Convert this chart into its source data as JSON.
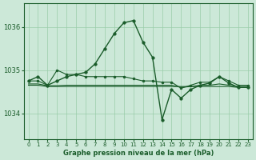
{
  "background_color": "#cce8d8",
  "plot_bg_color": "#cce8d8",
  "grid_color": "#99ccaa",
  "line_color": "#1a5c2a",
  "xlabel": "Graphe pression niveau de la mer (hPa)",
  "ylim": [
    1033.4,
    1036.55
  ],
  "xlim": [
    -0.5,
    23.5
  ],
  "yticks": [
    1034,
    1035,
    1036
  ],
  "xticks": [
    0,
    1,
    2,
    3,
    4,
    5,
    6,
    7,
    8,
    9,
    10,
    11,
    12,
    13,
    14,
    15,
    16,
    17,
    18,
    19,
    20,
    21,
    22,
    23
  ],
  "series": [
    {
      "x": [
        0,
        1,
        2,
        3,
        4,
        5,
        6,
        7,
        8,
        9,
        10,
        11,
        12,
        13,
        14,
        15,
        16,
        17,
        18,
        19,
        20,
        21,
        22,
        23
      ],
      "y": [
        1034.75,
        1034.85,
        1034.65,
        1034.75,
        1034.85,
        1034.9,
        1034.95,
        1035.15,
        1035.5,
        1035.85,
        1036.1,
        1036.15,
        1035.65,
        1035.3,
        1033.85,
        1034.55,
        1034.35,
        1034.55,
        1034.65,
        1034.7,
        1034.85,
        1034.7,
        1034.6,
        1034.6
      ],
      "marker": "o",
      "markersize": 2.5,
      "linewidth": 1.0
    },
    {
      "x": [
        0,
        1,
        2,
        3,
        4,
        5,
        6,
        7,
        8,
        9,
        10,
        11,
        12,
        13,
        14,
        15,
        16,
        17,
        18,
        19,
        20,
        21,
        22,
        23
      ],
      "y": [
        1034.75,
        1034.75,
        1034.65,
        1035.0,
        1034.9,
        1034.9,
        1034.85,
        1034.85,
        1034.85,
        1034.85,
        1034.85,
        1034.8,
        1034.75,
        1034.75,
        1034.72,
        1034.72,
        1034.58,
        1034.65,
        1034.72,
        1034.72,
        1034.85,
        1034.75,
        1034.65,
        1034.65
      ],
      "marker": "o",
      "markersize": 2.0,
      "linewidth": 0.8
    },
    {
      "x": [
        0,
        1,
        2,
        3,
        4,
        5,
        6,
        7,
        8,
        9,
        10,
        11,
        12,
        13,
        14,
        15,
        16,
        17,
        18,
        19,
        20,
        21,
        22,
        23
      ],
      "y": [
        1034.65,
        1034.65,
        1034.62,
        1034.62,
        1034.62,
        1034.62,
        1034.62,
        1034.62,
        1034.62,
        1034.62,
        1034.62,
        1034.62,
        1034.62,
        1034.62,
        1034.62,
        1034.62,
        1034.62,
        1034.62,
        1034.62,
        1034.62,
        1034.62,
        1034.62,
        1034.6,
        1034.6
      ],
      "marker": "none",
      "markersize": 0,
      "linewidth": 0.8
    },
    {
      "x": [
        0,
        1,
        2,
        3,
        4,
        5,
        6,
        7,
        8,
        9,
        10,
        11,
        12,
        13,
        14,
        15,
        16,
        17,
        18,
        19,
        20,
        21,
        22,
        23
      ],
      "y": [
        1034.68,
        1034.68,
        1034.64,
        1034.64,
        1034.65,
        1034.65,
        1034.65,
        1034.65,
        1034.65,
        1034.65,
        1034.65,
        1034.65,
        1034.65,
        1034.65,
        1034.65,
        1034.65,
        1034.6,
        1034.62,
        1034.65,
        1034.65,
        1034.68,
        1034.65,
        1034.62,
        1034.62
      ],
      "marker": "none",
      "markersize": 0,
      "linewidth": 0.8
    }
  ]
}
